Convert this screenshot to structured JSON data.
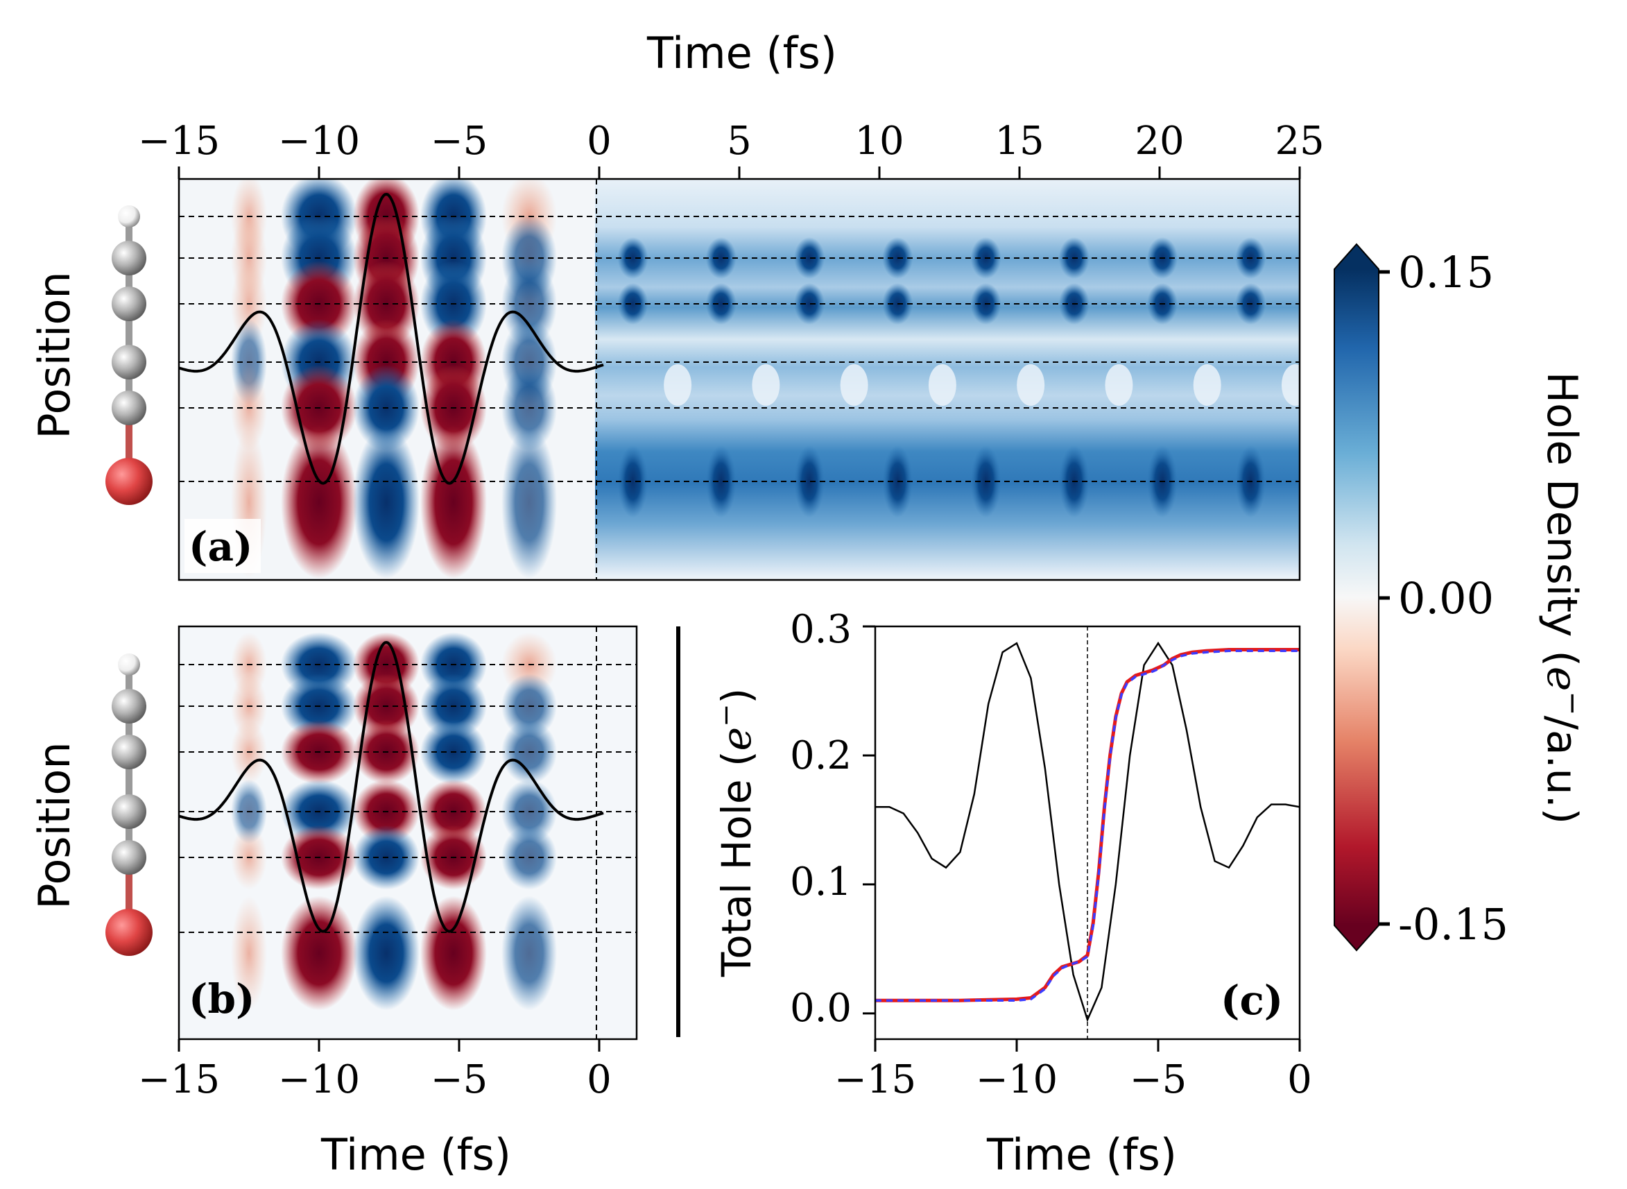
{
  "chart_data": [
    {
      "panel": "(a)",
      "type": "heatmap",
      "xlabel": "Time (fs)",
      "ylabel": "Position",
      "xlim": [
        -15,
        25
      ],
      "xticks": [
        -15,
        -10,
        -5,
        0,
        5,
        10,
        15,
        20,
        25
      ],
      "x_tick_labels": [
        "−15",
        "−10",
        "−5",
        "0",
        "5",
        "10",
        "15",
        "20",
        "25"
      ],
      "x_axis_position": "top",
      "vline_x": 0,
      "atom_rows": 6,
      "molecule_atoms": [
        "H",
        "C",
        "C",
        "C",
        "C",
        "Br"
      ],
      "overlay_curve": "laser field",
      "annotation": "(a)"
    },
    {
      "panel": "(b)",
      "type": "heatmap",
      "xlabel": "Time (fs)",
      "ylabel": "Position",
      "xlim": [
        -15,
        1.3
      ],
      "xticks": [
        -15,
        -10,
        -5,
        0
      ],
      "x_tick_labels": [
        "−15",
        "−10",
        "−5",
        "0"
      ],
      "vline_x": 0,
      "atom_rows": 6,
      "molecule_atoms": [
        "H",
        "C",
        "C",
        "C",
        "C",
        "Br"
      ],
      "overlay_curve": "laser field",
      "annotation": "(b)"
    },
    {
      "panel": "(c)",
      "type": "line",
      "xlabel": "Time (fs)",
      "ylabel": "Total Hole (e⁻)",
      "xlim": [
        -15,
        0
      ],
      "ylim": [
        -0.02,
        0.3
      ],
      "xticks": [
        -15,
        -10,
        -5,
        0
      ],
      "x_tick_labels": [
        "−15",
        "−10",
        "−5",
        "0"
      ],
      "yticks": [
        0.0,
        0.1,
        0.2,
        0.3
      ],
      "y_tick_labels": [
        "0.0",
        "0.1",
        "0.2",
        "0.3"
      ],
      "vline_x": -7.5,
      "series": [
        {
          "color": "#e41a1c",
          "style": "solid",
          "x": [
            -15,
            -12,
            -10,
            -9.5,
            -9,
            -8.7,
            -8.4,
            -8.1,
            -7.8,
            -7.5,
            -7.3,
            -7.1,
            -6.9,
            -6.7,
            -6.5,
            -6.3,
            -6.1,
            -5.8,
            -5.5,
            -5.2,
            -5.0,
            -4.8,
            -4.5,
            -4.2,
            -3.8,
            -3.3,
            -2.5,
            -1.0,
            0
          ],
          "y": [
            0.01,
            0.01,
            0.011,
            0.012,
            0.02,
            0.03,
            0.036,
            0.038,
            0.04,
            0.045,
            0.07,
            0.11,
            0.16,
            0.2,
            0.23,
            0.248,
            0.257,
            0.262,
            0.264,
            0.266,
            0.268,
            0.27,
            0.275,
            0.278,
            0.28,
            0.281,
            0.282,
            0.282,
            0.282
          ]
        },
        {
          "color": "#3b3bff",
          "style": "dashed",
          "x": [
            -15,
            -12,
            -10,
            -9.5,
            -9,
            -8.7,
            -8.4,
            -8.1,
            -7.8,
            -7.5,
            -7.3,
            -7.1,
            -6.9,
            -6.7,
            -6.5,
            -6.3,
            -6.1,
            -5.8,
            -5.5,
            -5.2,
            -5.0,
            -4.8,
            -4.5,
            -4.2,
            -3.8,
            -3.3,
            -2.5,
            -1.0,
            0
          ],
          "y": [
            0.01,
            0.01,
            0.01,
            0.011,
            0.019,
            0.029,
            0.035,
            0.038,
            0.04,
            0.044,
            0.068,
            0.108,
            0.158,
            0.199,
            0.229,
            0.247,
            0.256,
            0.261,
            0.263,
            0.265,
            0.267,
            0.27,
            0.274,
            0.277,
            0.279,
            0.28,
            0.281,
            0.281,
            0.281
          ]
        },
        {
          "color": "#000000",
          "style": "thin",
          "x": [
            -15,
            -14.5,
            -14,
            -13.5,
            -13,
            -12.5,
            -12,
            -11.5,
            -11,
            -10.5,
            -10,
            -9.5,
            -9,
            -8.5,
            -8,
            -7.5,
            -7,
            -6.5,
            -6,
            -5.5,
            -5,
            -4.5,
            -4,
            -3.5,
            -3,
            -2.5,
            -2,
            -1.5,
            -1,
            -0.5,
            0
          ],
          "y": [
            0.16,
            0.16,
            0.155,
            0.14,
            0.12,
            0.113,
            0.125,
            0.17,
            0.24,
            0.28,
            0.287,
            0.26,
            0.19,
            0.1,
            0.03,
            -0.005,
            0.02,
            0.1,
            0.2,
            0.27,
            0.287,
            0.27,
            0.22,
            0.16,
            0.118,
            0.113,
            0.13,
            0.152,
            0.162,
            0.162,
            0.16
          ]
        }
      ],
      "annotation": "(c)"
    }
  ],
  "colorbar": {
    "label": "Hole Density (e⁻/a.u.)",
    "ticks": [
      0.15,
      0.0,
      -0.15
    ],
    "tick_labels": [
      "0.15",
      "0.00",
      "-0.15"
    ],
    "colors": {
      "negative": "#67001f",
      "zero": "#f7f7f7",
      "positive": "#053061"
    }
  },
  "labels": {
    "top_xlabel": "Time (fs)",
    "a_ylabel": "Position",
    "b_ylabel": "Position",
    "b_xlabel": "Time (fs)",
    "c_xlabel": "Time (fs)",
    "c_ylabel": "Total Hole (",
    "c_ylabel_e": "e",
    "c_ylabel_sup": "−",
    "c_ylabel_close": ")",
    "cb_label_pre": "Hole Density (",
    "cb_label_e": "e",
    "cb_label_sup": "−",
    "cb_label_post": "/a.u.)",
    "a_tag": "(a)",
    "b_tag": "(b)",
    "c_tag": "(c)",
    "a_tick_m15": "−15",
    "a_tick_m10": "−10",
    "a_tick_m5": "−5",
    "a_tick_0": "0",
    "a_tick_5": "5",
    "a_tick_10": "10",
    "a_tick_15": "15",
    "a_tick_20": "20",
    "a_tick_25": "25",
    "b_tick_m15": "−15",
    "b_tick_m10": "−10",
    "b_tick_m5": "−5",
    "b_tick_0": "0",
    "c_tick_m15": "−15",
    "c_tick_m10": "−10",
    "c_tick_m5": "−5",
    "c_tick_0": "0",
    "c_ytick_0": "0.0",
    "c_ytick_1": "0.1",
    "c_ytick_2": "0.2",
    "c_ytick_3": "0.3",
    "cb_tick_top": "0.15",
    "cb_tick_mid": "0.00",
    "cb_tick_bot": "-0.15"
  }
}
